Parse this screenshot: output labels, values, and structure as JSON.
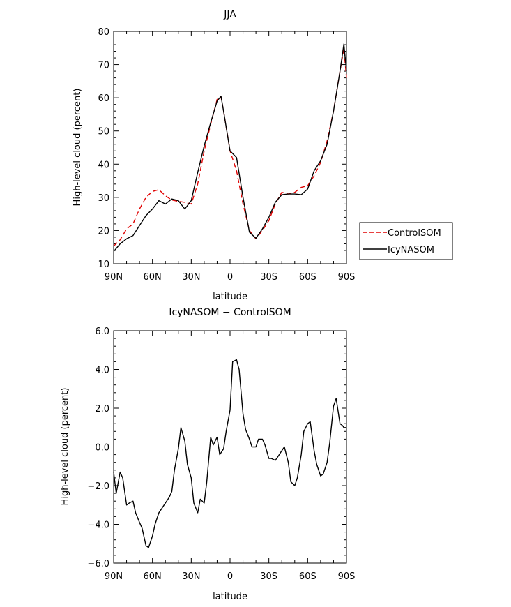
{
  "chart_data": [
    {
      "type": "line",
      "title": "JJA",
      "xlabel": "latitude",
      "ylabel": "High-level cloud (percent)",
      "xlim": [
        90,
        -90
      ],
      "ylim": [
        10,
        80
      ],
      "xticks": [
        90,
        60,
        30,
        0,
        -30,
        -60,
        -90
      ],
      "xtick_labels": [
        "90N",
        "60N",
        "30N",
        "0",
        "30S",
        "60S",
        "90S"
      ],
      "yticks": [
        10,
        20,
        30,
        40,
        50,
        60,
        70,
        80
      ],
      "ytick_labels": [
        "10",
        "20",
        "30",
        "40",
        "50",
        "60",
        "70",
        "80"
      ],
      "grid": false,
      "legend": "outside-right",
      "series": [
        {
          "name": "ControlSOM",
          "color": "#e00000",
          "dash": "dashed",
          "x": [
            90,
            85,
            80,
            75,
            70,
            65,
            60,
            55,
            50,
            45,
            40,
            35,
            30,
            25,
            20,
            15,
            10,
            7,
            5,
            0,
            -5,
            -10,
            -15,
            -20,
            -25,
            -30,
            -35,
            -40,
            -45,
            -50,
            -55,
            -60,
            -65,
            -70,
            -75,
            -80,
            -85,
            -88,
            -90
          ],
          "y": [
            15.3,
            17.2,
            20.5,
            22,
            26.5,
            30,
            31.8,
            32.3,
            30.5,
            29.2,
            28.8,
            28.5,
            28,
            34,
            44,
            52,
            59.5,
            60.3,
            56,
            44,
            38,
            28,
            20,
            17.5,
            20,
            23,
            28,
            31.5,
            31,
            31.5,
            33,
            33.5,
            36.5,
            40.5,
            47,
            56,
            68,
            74.8,
            66
          ]
        },
        {
          "name": "IcyNASOM",
          "color": "#000000",
          "dash": "solid",
          "x": [
            90,
            85,
            80,
            75,
            70,
            65,
            60,
            55,
            50,
            45,
            40,
            35,
            30,
            25,
            20,
            15,
            10,
            7,
            5,
            0,
            -5,
            -10,
            -15,
            -20,
            -25,
            -30,
            -35,
            -40,
            -45,
            -50,
            -55,
            -60,
            -65,
            -70,
            -75,
            -80,
            -85,
            -88,
            -90
          ],
          "y": [
            13.7,
            16,
            17.5,
            18.5,
            21.5,
            24.5,
            26.5,
            29,
            28,
            29.5,
            29,
            26.5,
            29,
            37.5,
            45.5,
            52.5,
            59,
            60.5,
            56,
            44,
            42,
            30,
            19.5,
            17.7,
            20.5,
            24,
            28.5,
            30.8,
            31,
            31,
            30.8,
            32.5,
            38,
            41,
            46,
            56,
            68,
            76.2,
            68
          ]
        }
      ]
    },
    {
      "type": "line",
      "title": "IcyNASOM − ControlSOM",
      "xlabel": "latitude",
      "ylabel": "High-level cloud (percent)",
      "xlim": [
        90,
        -90
      ],
      "ylim": [
        -6,
        6
      ],
      "xticks": [
        90,
        60,
        30,
        0,
        -30,
        -60,
        -90
      ],
      "xtick_labels": [
        "90N",
        "60N",
        "30N",
        "0",
        "30S",
        "60S",
        "90S"
      ],
      "yticks": [
        -6,
        -4,
        -2,
        0,
        2,
        4,
        6
      ],
      "ytick_labels": [
        "−6.0",
        "−4.0",
        "−2.0",
        "0.0",
        "2.0",
        "4.0",
        "6.0"
      ],
      "grid": false,
      "legend": "none",
      "series": [
        {
          "color": "#000000",
          "dash": "solid",
          "x": [
            90,
            88,
            85,
            83,
            80,
            78,
            75,
            73,
            70,
            68,
            65,
            63,
            60,
            58,
            55,
            53,
            50,
            47,
            45,
            43,
            40,
            38,
            35,
            33,
            30,
            28,
            25,
            23,
            20,
            18,
            15,
            13,
            10,
            8,
            5,
            3,
            0,
            -2,
            -5,
            -7,
            -10,
            -12,
            -15,
            -17,
            -20,
            -22,
            -25,
            -27,
            -30,
            -32,
            -35,
            -37,
            -40,
            -42,
            -45,
            -47,
            -50,
            -52,
            -55,
            -57,
            -60,
            -62,
            -65,
            -67,
            -70,
            -72,
            -75,
            -77,
            -80,
            -82,
            -85,
            -87,
            -88,
            -90
          ],
          "y": [
            -1.3,
            -2.4,
            -1.3,
            -1.6,
            -3.0,
            -2.9,
            -2.8,
            -3.4,
            -3.9,
            -4.2,
            -5.1,
            -5.2,
            -4.6,
            -4.0,
            -3.4,
            -3.2,
            -2.9,
            -2.6,
            -2.3,
            -1.2,
            -0.1,
            1.0,
            0.3,
            -0.9,
            -1.6,
            -2.9,
            -3.4,
            -2.7,
            -2.9,
            -1.8,
            0.5,
            0.1,
            0.5,
            -0.4,
            -0.1,
            0.8,
            1.9,
            4.4,
            4.5,
            4.0,
            1.7,
            0.9,
            0.4,
            0.0,
            0.0,
            0.4,
            0.4,
            0.1,
            -0.6,
            -0.6,
            -0.7,
            -0.5,
            -0.2,
            0.0,
            -0.8,
            -1.8,
            -2.0,
            -1.6,
            -0.4,
            0.8,
            1.2,
            1.3,
            -0.2,
            -0.9,
            -1.5,
            -1.4,
            -0.8,
            0.2,
            2.1,
            2.5,
            1.2,
            1.1,
            1.0,
            1.0
          ]
        }
      ]
    }
  ]
}
